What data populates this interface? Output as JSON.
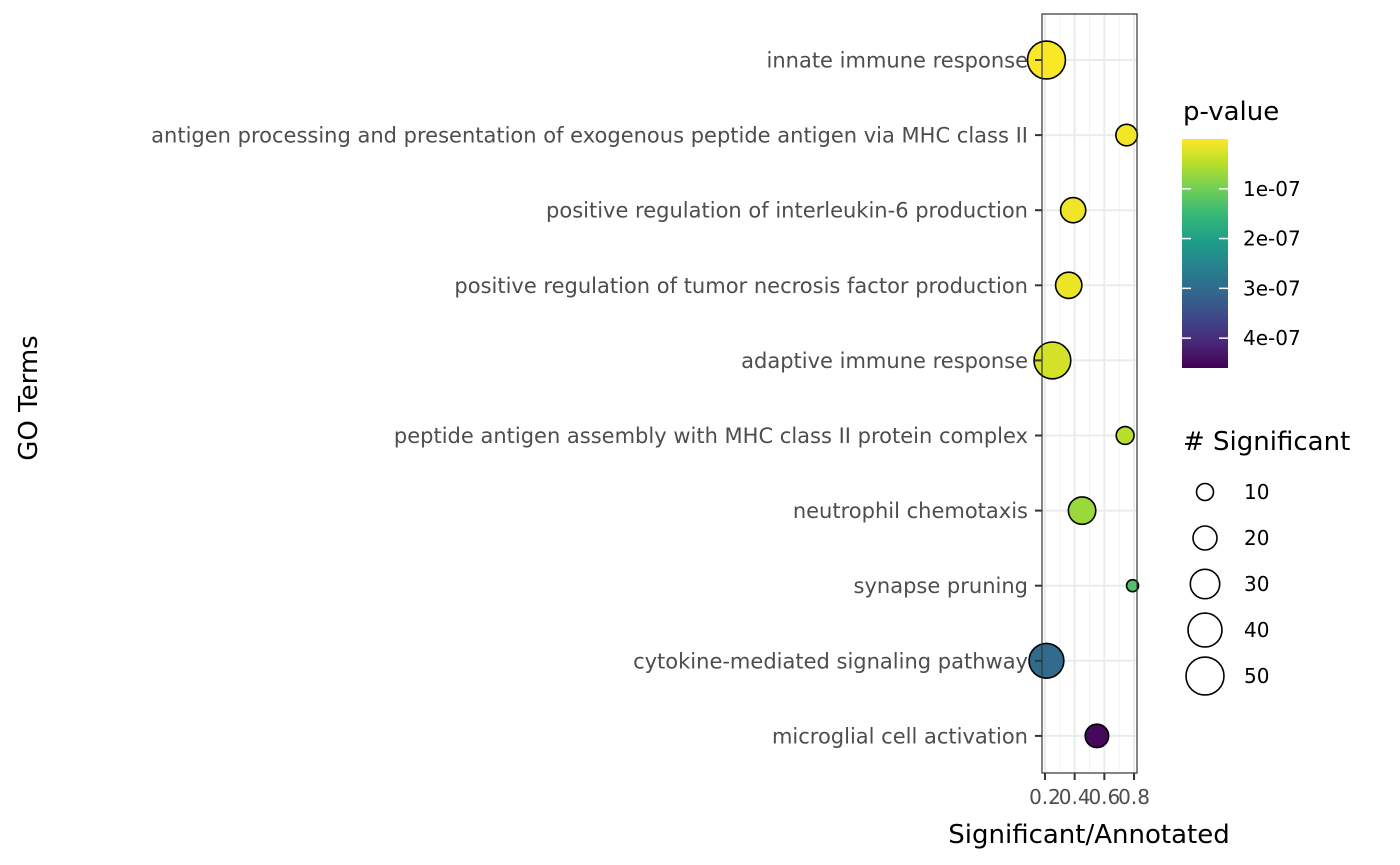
{
  "chart_data": {
    "type": "scatter",
    "xlabel": "Significant/Annotated",
    "ylabel": "GO Terms",
    "xlim": [
      0.18,
      0.82
    ],
    "x_ticks": [
      "0.2",
      "0.4",
      "0.6",
      "0.8"
    ],
    "grid": true,
    "terms": [
      {
        "term": "innate immune response",
        "ratio": 0.21,
        "significant": 50,
        "pvalue": 2e-09
      },
      {
        "term": "antigen processing and presentation of exogenous peptide antigen via MHC class II",
        "ratio": 0.75,
        "significant": 16,
        "pvalue": 8e-09
      },
      {
        "term": "positive regulation of interleukin-6 production",
        "ratio": 0.39,
        "significant": 22,
        "pvalue": 1e-08
      },
      {
        "term": "positive regulation of tumor necrosis factor production",
        "ratio": 0.36,
        "significant": 24,
        "pvalue": 1.2e-08
      },
      {
        "term": "adaptive immune response",
        "ratio": 0.25,
        "significant": 47,
        "pvalue": 3e-08
      },
      {
        "term": "peptide antigen assembly with MHC class II protein complex",
        "ratio": 0.74,
        "significant": 11,
        "pvalue": 5e-08
      },
      {
        "term": "neutrophil chemotaxis",
        "ratio": 0.45,
        "significant": 26,
        "pvalue": 7e-08
      },
      {
        "term": "synapse pruning",
        "ratio": 0.79,
        "significant": 5,
        "pvalue": 1.3e-07
      },
      {
        "term": "cytokine-mediated signaling pathway",
        "ratio": 0.21,
        "significant": 42,
        "pvalue": 3e-07
      },
      {
        "term": "microglial cell activation",
        "ratio": 0.55,
        "significant": 19,
        "pvalue": 4.5e-07
      }
    ],
    "legend_color": {
      "title": "p-value",
      "labels": [
        "1e-07",
        "2e-07",
        "3e-07",
        "4e-07"
      ],
      "values": [
        1e-07,
        2e-07,
        3e-07,
        4e-07
      ],
      "range": [
        0,
        4.6e-07
      ],
      "colors": [
        "#fde725",
        "#b5de2b",
        "#6ece58",
        "#35b779",
        "#1f9e89",
        "#26828e",
        "#31688e",
        "#3e4989",
        "#482878",
        "#440154"
      ]
    },
    "legend_size": {
      "title": "# Significant",
      "labels": [
        "10",
        "20",
        "30",
        "40",
        "50"
      ],
      "values": [
        10,
        20,
        30,
        40,
        50
      ]
    },
    "legend_placement": "right"
  }
}
